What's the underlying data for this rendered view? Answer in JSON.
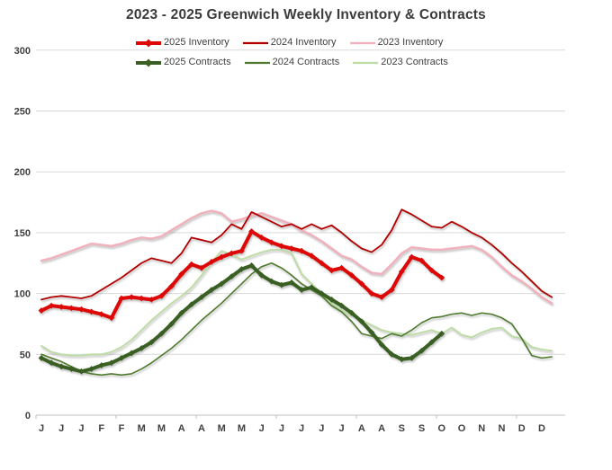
{
  "title": "2023 - 2025 Greenwich Weekly Inventory & Contracts",
  "chart_data": {
    "type": "line",
    "title": "2023 - 2025 Greenwich Weekly Inventory & Contracts",
    "x_unit": "week of year (labels are month initials, one label every 2 weeks)",
    "x_tick_labels": [
      "J",
      "J",
      "J",
      "F",
      "F",
      "M",
      "M",
      "A",
      "A",
      "M",
      "M",
      "J",
      "J",
      "J",
      "J",
      "J",
      "A",
      "A",
      "S",
      "S",
      "O",
      "O",
      "N",
      "N",
      "D",
      "D"
    ],
    "x_tick_weeks": [
      1,
      3,
      5,
      7,
      9,
      11,
      13,
      15,
      17,
      19,
      21,
      23,
      25,
      27,
      29,
      31,
      33,
      35,
      37,
      39,
      41,
      43,
      45,
      47,
      49,
      51
    ],
    "y_axis": {
      "ticks": [
        0,
        50,
        100,
        150,
        200,
        250,
        300
      ],
      "range": [
        0,
        300
      ]
    },
    "grid": "horizontal",
    "legend_position": "top",
    "series": [
      {
        "name": "2025 Inventory",
        "color": "#DD0806",
        "line_width": 4,
        "marker": "diamond",
        "start_week": 1,
        "values": [
          86,
          90,
          89,
          88,
          87,
          85,
          83,
          80,
          96,
          97,
          96,
          95,
          98,
          106,
          116,
          124,
          121,
          126,
          130,
          133,
          135,
          151,
          146,
          142,
          139,
          137,
          135,
          131,
          125,
          119,
          121,
          115,
          108,
          100,
          97,
          103,
          118,
          130,
          127,
          119,
          113
        ]
      },
      {
        "name": "2024 Inventory",
        "color": "#B20000",
        "line_width": 1.8,
        "marker": "none",
        "start_week": 1,
        "values": [
          95,
          97,
          98,
          97,
          96,
          98,
          103,
          108,
          113,
          119,
          125,
          129,
          127,
          125,
          133,
          146,
          144,
          142,
          148,
          157,
          153,
          167,
          163,
          159,
          155,
          157,
          153,
          157,
          153,
          156,
          150,
          143,
          137,
          134,
          140,
          152,
          169,
          165,
          160,
          155,
          154,
          159,
          155,
          150,
          146,
          140,
          133,
          125,
          118,
          110,
          102,
          97
        ]
      },
      {
        "name": "2023 Inventory",
        "color": "#F2B0BC",
        "line_width": 2.4,
        "marker": "none",
        "start_week": 1,
        "values": [
          127,
          129,
          132,
          135,
          138,
          141,
          140,
          139,
          141,
          144,
          146,
          145,
          147,
          152,
          157,
          162,
          166,
          168,
          166,
          159,
          161,
          164,
          166,
          163,
          160,
          157,
          152,
          148,
          143,
          137,
          131,
          128,
          122,
          117,
          116,
          124,
          133,
          138,
          137,
          136,
          136,
          137,
          138,
          139,
          136,
          130,
          122,
          115,
          110,
          104,
          97,
          92
        ]
      },
      {
        "name": "2025 Contracts",
        "color": "#3A5F23",
        "line_width": 4,
        "marker": "diamond",
        "start_week": 1,
        "values": [
          47,
          43,
          40,
          38,
          36,
          38,
          41,
          43,
          47,
          51,
          55,
          60,
          67,
          75,
          84,
          91,
          97,
          103,
          108,
          114,
          120,
          123,
          115,
          110,
          107,
          109,
          103,
          105,
          100,
          95,
          90,
          84,
          77,
          68,
          58,
          50,
          46,
          47,
          53,
          60,
          67
        ]
      },
      {
        "name": "2024 Contracts",
        "color": "#4E7A2E",
        "line_width": 1.6,
        "marker": "none",
        "start_week": 1,
        "values": [
          50,
          47,
          44,
          40,
          36,
          34,
          33,
          34,
          33,
          34,
          38,
          43,
          49,
          55,
          62,
          70,
          78,
          85,
          92,
          100,
          108,
          116,
          122,
          125,
          121,
          115,
          108,
          103,
          98,
          90,
          85,
          77,
          67,
          65,
          63,
          67,
          65,
          70,
          76,
          80,
          81,
          83,
          84,
          82,
          84,
          83,
          80,
          75,
          63,
          49,
          47,
          48
        ]
      },
      {
        "name": "2023 Contracts",
        "color": "#BCDCA2",
        "line_width": 1.8,
        "marker": "none",
        "start_week": 1,
        "values": [
          57,
          52,
          50,
          49,
          49,
          50,
          50,
          52,
          56,
          62,
          70,
          78,
          85,
          92,
          98,
          105,
          115,
          126,
          135,
          132,
          128,
          131,
          134,
          136,
          136,
          133,
          116,
          108,
          100,
          92,
          86,
          82,
          78,
          74,
          70,
          68,
          67,
          66,
          68,
          70,
          67,
          72,
          66,
          64,
          68,
          71,
          72,
          65,
          63,
          56,
          54,
          53
        ]
      }
    ]
  }
}
